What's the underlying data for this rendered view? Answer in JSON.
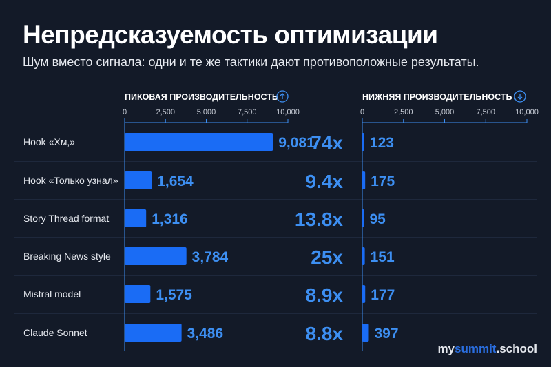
{
  "title": "Непредсказуемость оптимизации",
  "subtitle": "Шум вместо сигнала: одни и те же тактики дают противоположные результаты.",
  "brand": {
    "part1": "my",
    "part2": "summit",
    "part3": ".school"
  },
  "colors": {
    "background": "#131a28",
    "bar": "#1a6cf5",
    "value_label": "#3d8ff2",
    "ratio": "#3d8ff2",
    "grid": "#2a3550"
  },
  "chart_data": [
    {
      "type": "bar",
      "orientation": "horizontal",
      "title": "ПИКОВАЯ ПРОИЗВОДИТЕЛЬНОСТЬ",
      "title_icon": "arrow-up-circle-icon",
      "categories": [
        "Hook «Хм,»",
        "Hook «Только узнал»",
        "Story Thread format",
        "Breaking News style",
        "Mistral model",
        "Claude Sonnet"
      ],
      "values": [
        9081,
        1654,
        1316,
        3784,
        1575,
        3486
      ],
      "value_labels": [
        "9,081",
        "1,654",
        "1,316",
        "3,784",
        "1,575",
        "3,486"
      ],
      "xlim": [
        0,
        10000
      ],
      "ticks": [
        "0",
        "2,500",
        "5,000",
        "7,500",
        "10,000"
      ]
    },
    {
      "type": "bar",
      "orientation": "horizontal",
      "title": "НИЖНЯЯ ПРОИЗВОДИТЕЛЬНОСТЬ",
      "title_icon": "arrow-down-circle-icon",
      "categories": [
        "Hook «Хм,»",
        "Hook «Только узнал»",
        "Story Thread format",
        "Breaking News style",
        "Mistral model",
        "Claude Sonnet"
      ],
      "values": [
        123,
        175,
        95,
        151,
        177,
        397
      ],
      "value_labels": [
        "123",
        "175",
        "95",
        "151",
        "177",
        "397"
      ],
      "xlim": [
        0,
        10000
      ],
      "ticks": [
        "0",
        "2,500",
        "5,000",
        "7,500",
        "10,000"
      ]
    }
  ],
  "ratios": [
    "74x",
    "9.4x",
    "13.8x",
    "25x",
    "8.9x",
    "8.8x"
  ]
}
